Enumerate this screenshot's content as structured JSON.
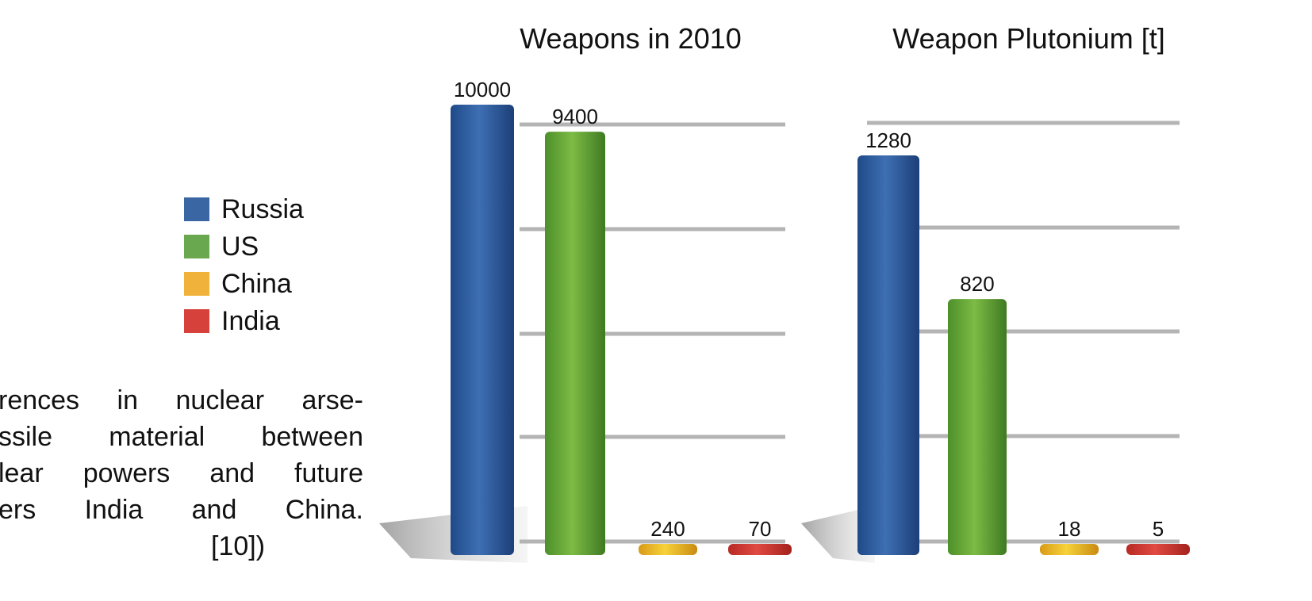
{
  "legend": {
    "items": [
      {
        "label": "Russia",
        "color": "#3a66a3"
      },
      {
        "label": "US",
        "color": "#6aa84f"
      },
      {
        "label": "China",
        "color": "#f0b23a"
      },
      {
        "label": "India",
        "color": "#d6423b"
      }
    ]
  },
  "caption": {
    "lines": [
      "rences in nuclear arse-",
      "ssile material between",
      "lear powers and future",
      "ers India and China.",
      "[10])"
    ]
  },
  "chart_data": [
    {
      "type": "bar",
      "title": "Weapons in 2010",
      "categories": [
        "Russia",
        "US",
        "China",
        "India"
      ],
      "values": [
        10000,
        9400,
        240,
        70
      ],
      "data_labels": [
        "10000",
        "9400",
        "240",
        "70"
      ],
      "ylim": [
        0,
        10000
      ],
      "grid": true,
      "legend_placement": "left"
    },
    {
      "type": "bar",
      "title": "Weapon Plutonium [t]",
      "categories": [
        "Russia",
        "US",
        "China",
        "India"
      ],
      "values": [
        1280,
        820,
        18,
        5
      ],
      "data_labels": [
        "1280",
        "820",
        "18",
        "5"
      ],
      "ylim": [
        0,
        1600
      ],
      "grid": true,
      "legend_placement": "left"
    }
  ]
}
